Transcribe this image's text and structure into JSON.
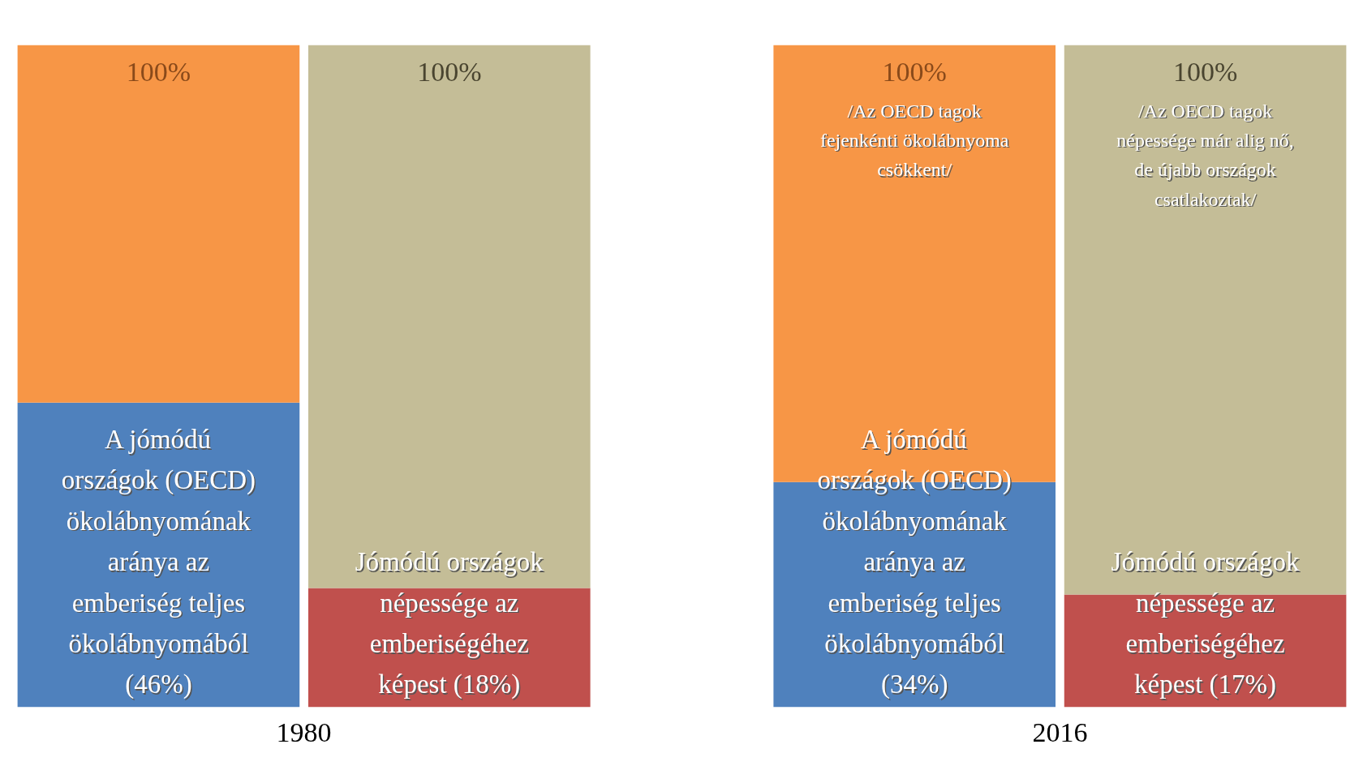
{
  "chart_data": {
    "type": "bar",
    "stacked": true,
    "categories": [
      null,
      null,
      null,
      null
    ],
    "ylim": [
      0,
      100
    ],
    "tick_labels": "x",
    "grid": false,
    "series": [
      {
        "colors": [
          "#4f81bd",
          "#c0504d",
          "#4f81bd",
          "#c0504d"
        ],
        "values": [
          46,
          18,
          34,
          17
        ],
        "value_labels": [
          "A jómódú országok (OECD) ökolábnyomának aránya az emberiség teljes ökolábnyomából (46%)",
          "Jómódú országok népessége az emberiségéhez képest (18%)",
          "A jómódú országok (OECD) ökolábnyomának aránya az emberiség teljes ökolábnyomából (34%)",
          "Jómódú országok népessége az emberiségéhez képest (17%)"
        ]
      },
      {
        "colors": [
          "#f79646",
          "#c4bd97",
          "#f79646",
          "#c4bd97"
        ],
        "values": [
          54,
          82,
          66,
          83
        ],
        "value_labels": [
          null,
          null,
          "/Az OECD tagok fejenkénti ökolábnyoma csökkent/",
          "/Az OECD tagok népessége már alig nő, de újabb országok csatlakoztak/"
        ]
      }
    ],
    "totals": [
      "100%",
      "100%",
      "100%",
      "100%"
    ],
    "annotations": [
      "1980",
      "2016"
    ]
  }
}
